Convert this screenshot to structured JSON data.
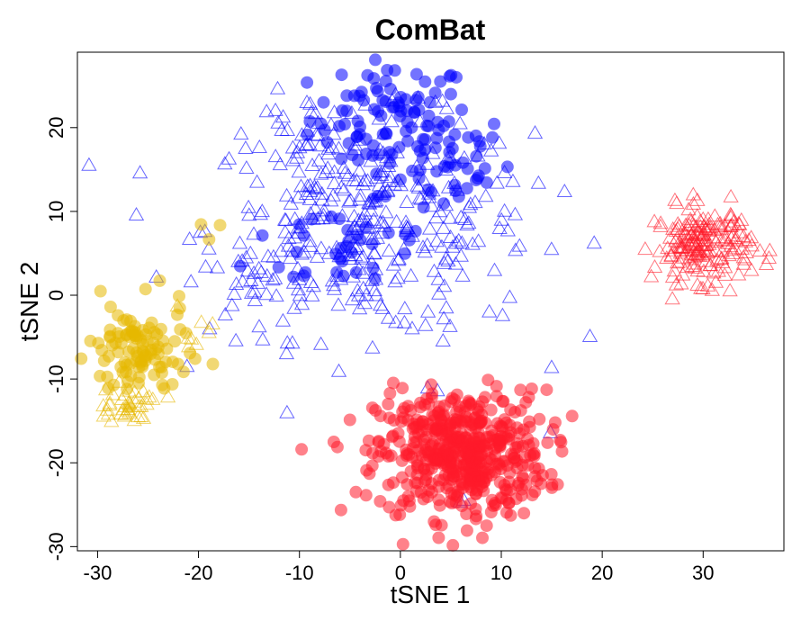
{
  "chart_data": {
    "type": "scatter",
    "title": "ComBat",
    "xlabel": "tSNE 1",
    "ylabel": "tSNE 2",
    "xlim": [
      -32,
      38
    ],
    "ylim": [
      -30.5,
      29
    ],
    "xticks": [
      -30,
      -20,
      -10,
      0,
      10,
      20,
      30
    ],
    "yticks": [
      -30,
      -20,
      -10,
      0,
      10,
      20
    ],
    "grid": false,
    "legend": "none",
    "colors": {
      "blue": "#0000ff",
      "red": "#ff1a2a",
      "yellow": "#e6b800"
    },
    "series": [
      {
        "color": "blue",
        "marker": "circle",
        "clusters": [
          {
            "cx": -1.0,
            "cy": 21.0,
            "sx": 4.0,
            "sy": 3.5,
            "n": 90
          },
          {
            "cx": 4.0,
            "cy": 16.0,
            "sx": 3.5,
            "sy": 3.0,
            "n": 45
          },
          {
            "cx": -5.0,
            "cy": 6.0,
            "sx": 5.0,
            "sy": 3.0,
            "n": 35
          }
        ]
      },
      {
        "color": "blue",
        "marker": "triangle",
        "clusters": [
          {
            "cx": -3.0,
            "cy": 8.0,
            "sx": 8.0,
            "sy": 6.5,
            "n": 340
          },
          {
            "cx": -10.0,
            "cy": 19.0,
            "sx": 2.5,
            "sy": 2.5,
            "n": 30
          },
          {
            "cx": -15.0,
            "cy": 1.0,
            "sx": 2.0,
            "sy": 2.0,
            "n": 15
          },
          {
            "cx": 3.0,
            "cy": -11.0,
            "sx": 0.4,
            "sy": 0.4,
            "n": 2
          },
          {
            "cx": 6.0,
            "cy": -24.0,
            "sx": 0.4,
            "sy": 0.4,
            "n": 2
          },
          {
            "cx": 15.5,
            "cy": -17.0,
            "sx": 0.4,
            "sy": 0.4,
            "n": 1
          }
        ]
      },
      {
        "color": "red",
        "marker": "circle",
        "clusters": [
          {
            "cx": 6.0,
            "cy": -19.0,
            "sx": 4.2,
            "sy": 3.8,
            "n": 520
          }
        ]
      },
      {
        "color": "red",
        "marker": "triangle",
        "clusters": [
          {
            "cx": 30.0,
            "cy": 6.0,
            "sx": 2.4,
            "sy": 2.2,
            "n": 190
          }
        ]
      },
      {
        "color": "yellow",
        "marker": "circle",
        "clusters": [
          {
            "cx": -26.0,
            "cy": -7.0,
            "sx": 2.5,
            "sy": 3.0,
            "n": 110
          },
          {
            "cx": -19.0,
            "cy": 8.0,
            "sx": 0.6,
            "sy": 0.6,
            "n": 3
          }
        ]
      },
      {
        "color": "yellow",
        "marker": "triangle",
        "clusters": [
          {
            "cx": -27.0,
            "cy": -13.0,
            "sx": 1.8,
            "sy": 1.0,
            "n": 40
          },
          {
            "cx": -20.5,
            "cy": -4.0,
            "sx": 1.0,
            "sy": 1.5,
            "n": 8
          }
        ]
      }
    ]
  }
}
